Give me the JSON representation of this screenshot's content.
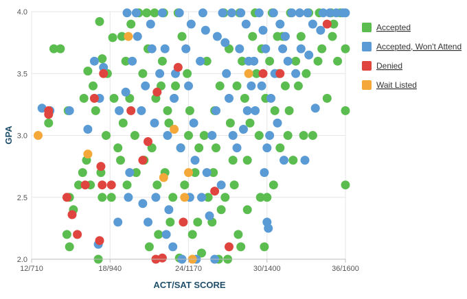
{
  "chart_data": {
    "type": "scatter",
    "title": "",
    "xlabel": "ACT/SAT SCORE",
    "ylabel": "GPA",
    "xlim": [
      12,
      36
    ],
    "ylim": [
      2.0,
      4.0
    ],
    "x_ticks": [
      {
        "value": 12,
        "label": "12/710"
      },
      {
        "value": 18,
        "label": "18/940"
      },
      {
        "value": 24,
        "label": "24/1170"
      },
      {
        "value": 30,
        "label": "30/1400"
      },
      {
        "value": 36,
        "label": "36/1600"
      }
    ],
    "y_ticks": [
      {
        "value": 2.0,
        "label": "2.0"
      },
      {
        "value": 2.5,
        "label": "2.5"
      },
      {
        "value": 3.0,
        "label": "3.0"
      },
      {
        "value": 3.5,
        "label": "3.5"
      },
      {
        "value": 4.0,
        "label": "4.0"
      }
    ],
    "grid": "both",
    "legend_position": "right",
    "series": [
      {
        "name": "Accepted",
        "color": "#5bbd4f",
        "points": [
          [
            13.7,
            3.7
          ],
          [
            14.2,
            3.7
          ],
          [
            14.8,
            3.2
          ],
          [
            16.0,
            3.3
          ],
          [
            16.3,
            3.52
          ],
          [
            16.7,
            3.4
          ],
          [
            17.2,
            3.92
          ],
          [
            17.4,
            3.62
          ],
          [
            17.8,
            3.5
          ],
          [
            18.2,
            3.79
          ],
          [
            18.9,
            3.8
          ],
          [
            19.6,
            3.9
          ],
          [
            20.2,
            3.99
          ],
          [
            20.8,
            3.99
          ],
          [
            21.4,
            3.99
          ],
          [
            22.1,
            3.99
          ],
          [
            23.2,
            3.99
          ],
          [
            13.3,
            3.1
          ],
          [
            14.9,
            2.5
          ],
          [
            15.2,
            2.4
          ],
          [
            15.6,
            2.6
          ],
          [
            16.2,
            2.8
          ],
          [
            16.5,
            2.6
          ],
          [
            17.4,
            2.5
          ],
          [
            17.1,
            2.0
          ],
          [
            18.6,
            2.9
          ],
          [
            19.3,
            2.6
          ],
          [
            20.0,
            2.7
          ],
          [
            21.0,
            2.1
          ],
          [
            21.7,
            2.2
          ],
          [
            22.6,
            2.3
          ],
          [
            23.3,
            2.01
          ],
          [
            24.3,
            2.2
          ],
          [
            25.0,
            2.05
          ],
          [
            26.3,
            2.0
          ],
          [
            27.0,
            2.0
          ],
          [
            28.0,
            2.1
          ],
          [
            28.5,
            2.4
          ],
          [
            29.5,
            2.5
          ],
          [
            30.0,
            2.5
          ],
          [
            30.5,
            2.6
          ],
          [
            31.0,
            2.9
          ],
          [
            31.6,
            3.0
          ],
          [
            32.4,
            3.4
          ],
          [
            33.0,
            3.5
          ],
          [
            33.5,
            3.0
          ],
          [
            34.2,
            3.7
          ],
          [
            35.0,
            3.8
          ],
          [
            35.4,
            3.6
          ],
          [
            36.0,
            3.7
          ],
          [
            36.0,
            3.2
          ],
          [
            36.0,
            2.6
          ],
          [
            35.1,
            3.9
          ],
          [
            34.6,
            3.3
          ],
          [
            33.9,
            3.6
          ],
          [
            26.7,
            3.99
          ],
          [
            27.9,
            3.99
          ],
          [
            29.1,
            3.99
          ],
          [
            30.4,
            3.99
          ],
          [
            31.8,
            3.99
          ],
          [
            33.2,
            3.99
          ],
          [
            34.9,
            3.99
          ],
          [
            20.5,
            3.5
          ],
          [
            21.5,
            3.3
          ],
          [
            22.5,
            3.1
          ],
          [
            23.4,
            2.9
          ],
          [
            24.5,
            2.7
          ],
          [
            25.5,
            2.5
          ],
          [
            26.5,
            2.4
          ],
          [
            27.5,
            2.6
          ],
          [
            28.5,
            2.8
          ],
          [
            29.4,
            3.0
          ],
          [
            30.6,
            3.2
          ],
          [
            31.4,
            3.4
          ],
          [
            32.2,
            3.6
          ],
          [
            19.9,
            3.0
          ],
          [
            20.6,
            2.8
          ],
          [
            21.6,
            2.6
          ],
          [
            22.8,
            2.5
          ],
          [
            24.7,
            2.3
          ],
          [
            25.8,
            2.3
          ],
          [
            26.8,
            2.5
          ],
          [
            27.4,
            2.8
          ],
          [
            28.7,
            3.1
          ],
          [
            29.9,
            3.3
          ],
          [
            30.9,
            3.5
          ],
          [
            32.6,
            3.8
          ],
          [
            18.3,
            3.3
          ],
          [
            19.0,
            3.1
          ],
          [
            22.0,
            3.6
          ],
          [
            23.0,
            3.4
          ],
          [
            24.1,
            3.2
          ],
          [
            25.2,
            3.0
          ],
          [
            26.1,
            2.9
          ],
          [
            27.2,
            3.1
          ],
          [
            28.3,
            3.3
          ],
          [
            29.2,
            3.5
          ],
          [
            31.2,
            3.8
          ],
          [
            17.7,
            3.0
          ],
          [
            18.8,
            2.8
          ],
          [
            21.2,
            2.9
          ],
          [
            22.2,
            2.7
          ],
          [
            23.7,
            2.6
          ],
          [
            24.8,
            2.9
          ],
          [
            26.0,
            3.2
          ],
          [
            27.7,
            3.4
          ],
          [
            29.6,
            3.7
          ],
          [
            16.9,
            3.2
          ],
          [
            19.5,
            3.3
          ],
          [
            20.9,
            3.7
          ],
          [
            23.5,
            3.8
          ],
          [
            25.4,
            3.6
          ],
          [
            27.1,
            3.7
          ],
          [
            28.9,
            3.8
          ],
          [
            30.2,
            3.6
          ],
          [
            31.7,
            3.2
          ],
          [
            32.8,
            3.0
          ],
          [
            25.9,
            2.7
          ],
          [
            24.0,
            3.0
          ],
          [
            22.4,
            3.2
          ],
          [
            21.9,
            3.4
          ],
          [
            19.2,
            3.6
          ],
          [
            18.1,
            2.5
          ],
          [
            17.3,
            2.7
          ],
          [
            15.9,
            2.7
          ],
          [
            14.7,
            2.2
          ],
          [
            14.9,
            2.1
          ],
          [
            34.0,
            3.99
          ],
          [
            35.6,
            3.99
          ],
          [
            23.9,
            3.5
          ],
          [
            26.4,
            3.4
          ],
          [
            28.1,
            3.6
          ],
          [
            30.8,
            3.8
          ],
          [
            32.0,
            2.8
          ],
          [
            29.8,
            2.1
          ],
          [
            27.8,
            2.2
          ]
        ]
      },
      {
        "name": "Accepted, Won't Attend",
        "color": "#5b9bd5",
        "points": [
          [
            12.8,
            3.22
          ],
          [
            13.4,
            3.2
          ],
          [
            14.9,
            3.2
          ],
          [
            16.3,
            3.05
          ],
          [
            16.8,
            3.6
          ],
          [
            17.2,
            3.3
          ],
          [
            17.5,
            3.55
          ],
          [
            19.3,
            3.99
          ],
          [
            20.1,
            3.8
          ],
          [
            21.1,
            3.9
          ],
          [
            22.2,
            3.7
          ],
          [
            23.3,
            3.99
          ],
          [
            24.2,
            3.9
          ],
          [
            25.1,
            3.99
          ],
          [
            26.2,
            3.8
          ],
          [
            27.3,
            3.99
          ],
          [
            28.4,
            3.9
          ],
          [
            29.4,
            3.99
          ],
          [
            30.5,
            3.99
          ],
          [
            31.4,
            3.8
          ],
          [
            32.5,
            3.99
          ],
          [
            33.5,
            3.9
          ],
          [
            34.8,
            3.99
          ],
          [
            35.8,
            3.99
          ],
          [
            19.2,
            3.35
          ],
          [
            20.4,
            3.2
          ],
          [
            21.4,
            3.1
          ],
          [
            22.4,
            3.0
          ],
          [
            23.4,
            2.9
          ],
          [
            24.5,
            2.8
          ],
          [
            25.4,
            2.7
          ],
          [
            26.5,
            2.6
          ],
          [
            27.4,
            3.0
          ],
          [
            28.5,
            3.2
          ],
          [
            29.6,
            3.4
          ],
          [
            30.6,
            3.5
          ],
          [
            31.6,
            3.6
          ],
          [
            32.6,
            3.7
          ],
          [
            33.7,
            3.22
          ],
          [
            32.9,
            2.8
          ],
          [
            30.0,
            2.3
          ],
          [
            30.1,
            2.25
          ],
          [
            29.8,
            2.7
          ],
          [
            26.0,
            2.0
          ],
          [
            24.6,
            2.0
          ],
          [
            23.5,
            2.0
          ],
          [
            22.8,
            2.1
          ],
          [
            20.9,
            2.3
          ],
          [
            20.5,
            2.45
          ],
          [
            19.4,
            2.5
          ],
          [
            18.6,
            2.3
          ],
          [
            17.1,
            2.12
          ],
          [
            19.5,
            2.7
          ],
          [
            21.5,
            2.5
          ],
          [
            22.5,
            2.4
          ],
          [
            24.1,
            2.5
          ],
          [
            25.6,
            2.35
          ],
          [
            27.7,
            2.9
          ],
          [
            28.8,
            3.4
          ],
          [
            29.9,
            3.7
          ],
          [
            31.0,
            3.9
          ],
          [
            21.8,
            3.5
          ],
          [
            22.9,
            3.3
          ],
          [
            24.0,
            3.4
          ],
          [
            24.9,
            3.6
          ],
          [
            26.1,
            3.2
          ],
          [
            26.9,
            3.5
          ],
          [
            27.9,
            3.7
          ],
          [
            29.0,
            3.6
          ],
          [
            30.3,
            3.3
          ],
          [
            30.8,
            3.1
          ],
          [
            31.3,
            2.8
          ],
          [
            28.2,
            3.05
          ],
          [
            25.8,
            3.0
          ],
          [
            24.4,
            3.1
          ],
          [
            23.0,
            3.5
          ],
          [
            21.2,
            3.7
          ],
          [
            20.7,
            3.4
          ],
          [
            19.7,
            3.6
          ],
          [
            18.7,
            3.2
          ],
          [
            20.0,
            3.99
          ],
          [
            22.0,
            3.99
          ],
          [
            26.6,
            3.99
          ],
          [
            28.0,
            3.99
          ],
          [
            31.9,
            3.99
          ],
          [
            33.1,
            3.99
          ],
          [
            34.3,
            3.99
          ],
          [
            35.3,
            3.99
          ],
          [
            36.0,
            3.99
          ],
          [
            23.8,
            3.7
          ],
          [
            25.3,
            3.85
          ],
          [
            26.8,
            3.75
          ],
          [
            28.6,
            3.6
          ],
          [
            29.7,
            3.85
          ],
          [
            31.2,
            3.7
          ],
          [
            32.2,
            3.5
          ],
          [
            33.2,
            3.65
          ],
          [
            34.1,
            3.85
          ],
          [
            27.1,
            3.3
          ],
          [
            29.1,
            3.2
          ],
          [
            30.0,
            2.9
          ],
          [
            30.2,
            3.0
          ],
          [
            25.0,
            2.5
          ],
          [
            22.3,
            2.2
          ]
        ]
      },
      {
        "name": "Denied",
        "color": "#e0443e",
        "points": [
          [
            13.3,
            3.2
          ],
          [
            13.3,
            3.17
          ],
          [
            14.7,
            2.5
          ],
          [
            15.1,
            2.36
          ],
          [
            15.5,
            2.2
          ],
          [
            16.1,
            2.6
          ],
          [
            16.8,
            3.3
          ],
          [
            17.3,
            2.75
          ],
          [
            17.4,
            2.6
          ],
          [
            17.2,
            2.15
          ],
          [
            18.1,
            2.6
          ],
          [
            19.6,
            3.2
          ],
          [
            20.5,
            2.8
          ],
          [
            20.9,
            2.95
          ],
          [
            21.5,
            2.0
          ],
          [
            22.0,
            2.01
          ],
          [
            23.6,
            2.3
          ],
          [
            23.2,
            3.55
          ],
          [
            26.0,
            2.55
          ],
          [
            27.1,
            2.1
          ],
          [
            29.7,
            3.5
          ],
          [
            31.0,
            3.5
          ],
          [
            34.6,
            3.9
          ],
          [
            17.5,
            3.5
          ],
          [
            21.6,
            3.35
          ]
        ]
      },
      {
        "name": "Wait Listed",
        "color": "#f4a83a",
        "points": [
          [
            12.5,
            3.0
          ],
          [
            16.3,
            2.85
          ],
          [
            19.4,
            3.8
          ],
          [
            22.1,
            2.66
          ],
          [
            24.0,
            2.7
          ],
          [
            23.7,
            2.5
          ],
          [
            22.9,
            3.05
          ],
          [
            24.3,
            2.0
          ],
          [
            28.6,
            3.5
          ]
        ]
      }
    ]
  }
}
